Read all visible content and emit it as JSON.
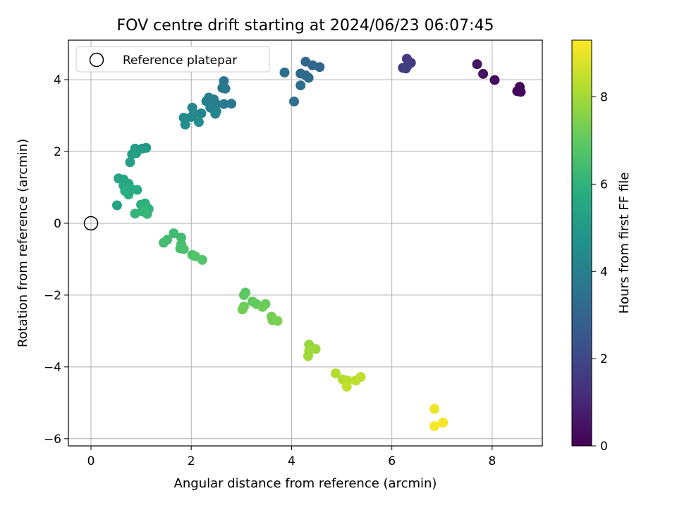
{
  "chart_data": {
    "type": "scatter",
    "title": "FOV centre drift starting at 2024/06/23 06:07:45",
    "xlabel": "Angular distance from reference (arcmin)",
    "ylabel": "Rotation from reference (arcmin)",
    "xlim": [
      -0.45,
      9.0
    ],
    "ylim": [
      -6.2,
      5.1
    ],
    "x_ticks": [
      0,
      2,
      4,
      6,
      8
    ],
    "x_tick_labels": [
      "0",
      "2",
      "4",
      "6",
      "8"
    ],
    "y_ticks": [
      -6,
      -4,
      -2,
      0,
      2,
      4
    ],
    "y_tick_labels": [
      "−6",
      "−4",
      "−2",
      "0",
      "2",
      "4"
    ],
    "grid": true,
    "legend": {
      "placement": "upper-left",
      "entries": [
        "Reference platepar"
      ]
    },
    "reference_point": {
      "x": 0,
      "y": 0,
      "label": "Reference platepar"
    },
    "colorbar": {
      "label": "Hours from first FF file",
      "range": [
        0,
        9.3
      ],
      "ticks": [
        0,
        2,
        4,
        6,
        8
      ],
      "tick_labels": [
        "0",
        "2",
        "4",
        "6",
        "8"
      ],
      "colormap": "viridis"
    },
    "points": [
      {
        "x": 8.55,
        "y": 3.8,
        "h": 0.05
      },
      {
        "x": 8.5,
        "y": 3.68,
        "h": 0.1
      },
      {
        "x": 8.57,
        "y": 3.66,
        "h": 0.15
      },
      {
        "x": 8.05,
        "y": 3.99,
        "h": 0.3
      },
      {
        "x": 7.82,
        "y": 4.16,
        "h": 0.45
      },
      {
        "x": 7.7,
        "y": 4.43,
        "h": 0.55
      },
      {
        "x": 6.3,
        "y": 4.58,
        "h": 1.5
      },
      {
        "x": 6.38,
        "y": 4.47,
        "h": 1.55
      },
      {
        "x": 6.22,
        "y": 4.33,
        "h": 1.6
      },
      {
        "x": 6.28,
        "y": 4.31,
        "h": 1.65
      },
      {
        "x": 6.32,
        "y": 4.4,
        "h": 1.7
      },
      {
        "x": 4.56,
        "y": 4.35,
        "h": 3.0
      },
      {
        "x": 4.42,
        "y": 4.4,
        "h": 3.05
      },
      {
        "x": 4.28,
        "y": 4.5,
        "h": 3.1
      },
      {
        "x": 4.18,
        "y": 4.17,
        "h": 3.15
      },
      {
        "x": 4.28,
        "y": 4.12,
        "h": 3.2
      },
      {
        "x": 4.34,
        "y": 4.05,
        "h": 3.25
      },
      {
        "x": 4.18,
        "y": 3.84,
        "h": 3.3
      },
      {
        "x": 4.05,
        "y": 3.39,
        "h": 3.35
      },
      {
        "x": 3.86,
        "y": 4.2,
        "h": 3.4
      },
      {
        "x": 2.65,
        "y": 3.96,
        "h": 3.6
      },
      {
        "x": 2.62,
        "y": 3.77,
        "h": 3.65
      },
      {
        "x": 2.68,
        "y": 3.75,
        "h": 3.7
      },
      {
        "x": 2.8,
        "y": 3.33,
        "h": 3.75
      },
      {
        "x": 2.65,
        "y": 3.32,
        "h": 3.8
      },
      {
        "x": 2.5,
        "y": 3.32,
        "h": 3.85
      },
      {
        "x": 2.45,
        "y": 3.45,
        "h": 3.9
      },
      {
        "x": 2.35,
        "y": 3.5,
        "h": 3.95
      },
      {
        "x": 2.3,
        "y": 3.4,
        "h": 4.0
      },
      {
        "x": 2.38,
        "y": 3.22,
        "h": 4.05
      },
      {
        "x": 2.5,
        "y": 3.12,
        "h": 4.1
      },
      {
        "x": 2.48,
        "y": 3.05,
        "h": 4.15
      },
      {
        "x": 2.2,
        "y": 3.06,
        "h": 4.2
      },
      {
        "x": 2.02,
        "y": 3.22,
        "h": 4.25
      },
      {
        "x": 2.05,
        "y": 3.05,
        "h": 4.3
      },
      {
        "x": 2.0,
        "y": 2.96,
        "h": 4.35
      },
      {
        "x": 1.85,
        "y": 2.94,
        "h": 4.4
      },
      {
        "x": 1.88,
        "y": 2.75,
        "h": 4.45
      },
      {
        "x": 2.15,
        "y": 2.82,
        "h": 4.5
      },
      {
        "x": 1.1,
        "y": 2.1,
        "h": 5.0
      },
      {
        "x": 1.02,
        "y": 2.08,
        "h": 5.05
      },
      {
        "x": 0.88,
        "y": 2.08,
        "h": 5.1
      },
      {
        "x": 0.82,
        "y": 1.92,
        "h": 5.15
      },
      {
        "x": 0.9,
        "y": 1.95,
        "h": 5.2
      },
      {
        "x": 0.78,
        "y": 1.7,
        "h": 5.25
      },
      {
        "x": 0.55,
        "y": 1.25,
        "h": 5.4
      },
      {
        "x": 0.65,
        "y": 1.22,
        "h": 5.45
      },
      {
        "x": 0.7,
        "y": 1.12,
        "h": 5.5
      },
      {
        "x": 0.75,
        "y": 1.1,
        "h": 5.55
      },
      {
        "x": 0.65,
        "y": 1.05,
        "h": 5.6
      },
      {
        "x": 0.8,
        "y": 0.95,
        "h": 5.65
      },
      {
        "x": 0.92,
        "y": 0.93,
        "h": 5.7
      },
      {
        "x": 0.68,
        "y": 0.9,
        "h": 5.75
      },
      {
        "x": 0.75,
        "y": 0.8,
        "h": 5.8
      },
      {
        "x": 1.0,
        "y": 0.52,
        "h": 5.85
      },
      {
        "x": 1.08,
        "y": 0.55,
        "h": 5.9
      },
      {
        "x": 1.05,
        "y": 0.45,
        "h": 5.95
      },
      {
        "x": 1.15,
        "y": 0.4,
        "h": 6.0
      },
      {
        "x": 0.52,
        "y": 0.5,
        "h": 5.3
      },
      {
        "x": 0.88,
        "y": 0.27,
        "h": 6.05
      },
      {
        "x": 1.02,
        "y": 0.33,
        "h": 6.1
      },
      {
        "x": 1.12,
        "y": 0.26,
        "h": 6.15
      },
      {
        "x": 1.65,
        "y": -0.28,
        "h": 6.3
      },
      {
        "x": 1.8,
        "y": -0.4,
        "h": 6.35
      },
      {
        "x": 1.52,
        "y": -0.46,
        "h": 6.4
      },
      {
        "x": 1.45,
        "y": -0.54,
        "h": 6.45
      },
      {
        "x": 1.8,
        "y": -0.58,
        "h": 6.5
      },
      {
        "x": 1.78,
        "y": -0.7,
        "h": 6.55
      },
      {
        "x": 1.85,
        "y": -0.72,
        "h": 6.6
      },
      {
        "x": 2.02,
        "y": -0.88,
        "h": 6.65
      },
      {
        "x": 2.08,
        "y": -0.92,
        "h": 6.7
      },
      {
        "x": 2.22,
        "y": -1.02,
        "h": 6.75
      },
      {
        "x": 3.08,
        "y": -1.93,
        "h": 6.9
      },
      {
        "x": 3.05,
        "y": -2.0,
        "h": 6.95
      },
      {
        "x": 3.22,
        "y": -2.18,
        "h": 7.0
      },
      {
        "x": 3.3,
        "y": -2.25,
        "h": 7.05
      },
      {
        "x": 3.48,
        "y": -2.25,
        "h": 7.1
      },
      {
        "x": 3.05,
        "y": -2.32,
        "h": 7.15
      },
      {
        "x": 3.42,
        "y": -2.33,
        "h": 7.2
      },
      {
        "x": 3.02,
        "y": -2.4,
        "h": 7.25
      },
      {
        "x": 3.6,
        "y": -2.6,
        "h": 7.3
      },
      {
        "x": 3.62,
        "y": -2.7,
        "h": 7.35
      },
      {
        "x": 3.72,
        "y": -2.72,
        "h": 7.4
      },
      {
        "x": 4.35,
        "y": -3.38,
        "h": 7.8
      },
      {
        "x": 4.48,
        "y": -3.5,
        "h": 7.85
      },
      {
        "x": 4.35,
        "y": -3.55,
        "h": 7.9
      },
      {
        "x": 4.33,
        "y": -3.7,
        "h": 7.95
      },
      {
        "x": 4.88,
        "y": -4.18,
        "h": 8.2
      },
      {
        "x": 5.02,
        "y": -4.35,
        "h": 8.25
      },
      {
        "x": 5.12,
        "y": -4.38,
        "h": 8.3
      },
      {
        "x": 5.28,
        "y": -4.38,
        "h": 8.35
      },
      {
        "x": 5.38,
        "y": -4.28,
        "h": 8.4
      },
      {
        "x": 5.1,
        "y": -4.55,
        "h": 8.45
      },
      {
        "x": 6.85,
        "y": -5.17,
        "h": 9.1
      },
      {
        "x": 7.02,
        "y": -5.55,
        "h": 9.15
      },
      {
        "x": 6.85,
        "y": -5.65,
        "h": 9.2
      }
    ]
  }
}
